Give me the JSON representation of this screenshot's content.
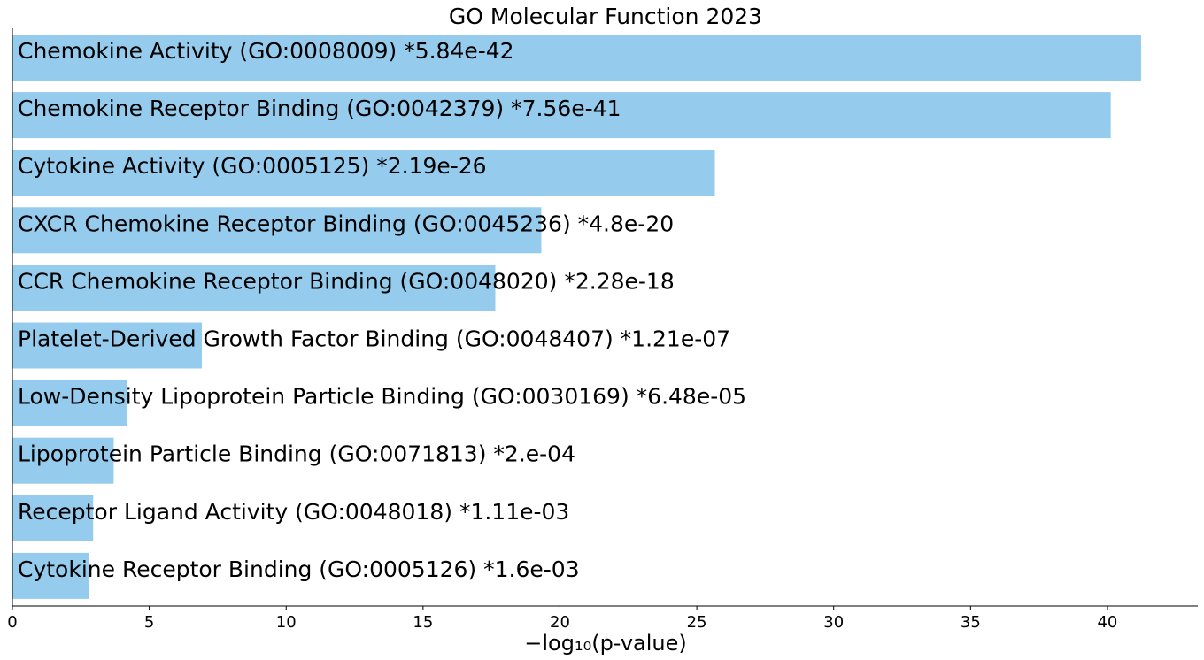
{
  "chart_data": {
    "type": "bar",
    "orientation": "horizontal",
    "title": "GO Molecular Function 2023",
    "xlabel": "−log₁₀(p-value)",
    "xlim": [
      0,
      43.3
    ],
    "xticks": [
      0,
      5,
      10,
      15,
      20,
      25,
      30,
      35,
      40
    ],
    "bar_color": "#95cbed",
    "grid": false,
    "categories": [
      "Chemokine Activity (GO:0008009)  *5.84e-42",
      "Chemokine Receptor Binding (GO:0042379)  *7.56e-41",
      "Cytokine Activity (GO:0005125)  *2.19e-26",
      "CXCR Chemokine Receptor Binding (GO:0045236)  *4.8e-20",
      "CCR Chemokine Receptor Binding (GO:0048020)  *2.28e-18",
      "Platelet-Derived Growth Factor Binding (GO:0048407)  *1.21e-07",
      "Low-Density Lipoprotein Particle Binding (GO:0030169)  *6.48e-05",
      "Lipoprotein Particle Binding (GO:0071813)  *2.e-04",
      "Receptor Ligand Activity (GO:0048018)  *1.11e-03",
      "Cytokine Receptor Binding (GO:0005126)  *1.6e-03"
    ],
    "values": [
      41.23,
      40.12,
      25.66,
      19.32,
      17.64,
      6.92,
      4.19,
      3.7,
      2.95,
      2.8
    ]
  }
}
